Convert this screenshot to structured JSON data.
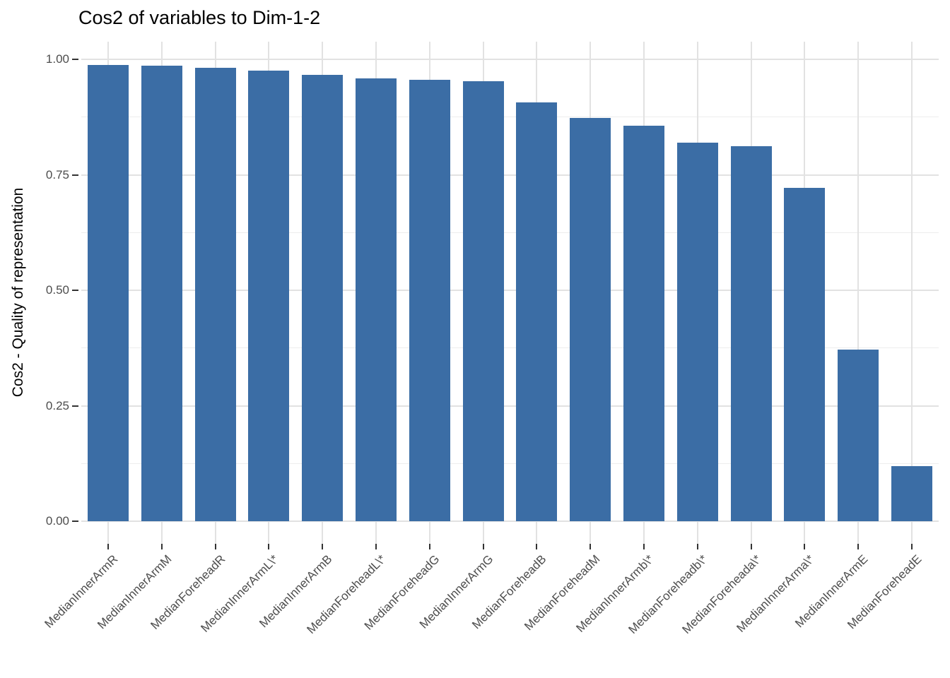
{
  "chart_data": {
    "type": "bar",
    "title": "Cos2 of variables to Dim-1-2",
    "xlabel": "",
    "ylabel": "Cos2 - Quality of representation",
    "ylim": [
      0,
      1.04
    ],
    "grid": true,
    "legend": "none",
    "y_axis": {
      "tick_values": [
        0,
        0.25,
        0.5,
        0.75,
        1.0
      ],
      "tick_labels": [
        "0.00",
        "0.25",
        "0.50",
        "0.75",
        "1.00"
      ],
      "minor_tick_values": [
        0.125,
        0.375,
        0.625,
        0.875
      ]
    },
    "categories": [
      "MedianInnerArmR",
      "MedianInnerArmM",
      "MedianForeheadR",
      "MedianInnerArmL\\*",
      "MedianInnerArmB",
      "MedianForeheadL\\*",
      "MedianForeheadG",
      "MedianInnerArmG",
      "MedianForeheadB",
      "MedianForeheadM",
      "MedianInnerArmb\\*",
      "MedianForeheadb\\*",
      "MedianForeheada\\*",
      "MedianInnerArma\\*",
      "MedianInnerArmE",
      "MedianForeheadE"
    ],
    "values": [
      0.988,
      0.986,
      0.981,
      0.975,
      0.966,
      0.959,
      0.955,
      0.953,
      0.906,
      0.873,
      0.857,
      0.82,
      0.812,
      0.722,
      0.372,
      0.12
    ],
    "colors": {
      "bar_fill": "#3b6da5",
      "grid_major": "#e2e2e2",
      "grid_minor": "#ededed",
      "axis_text": "#4d4d4d",
      "tick_mark": "#333333",
      "title_text": "#000000",
      "background": "#ffffff"
    }
  }
}
